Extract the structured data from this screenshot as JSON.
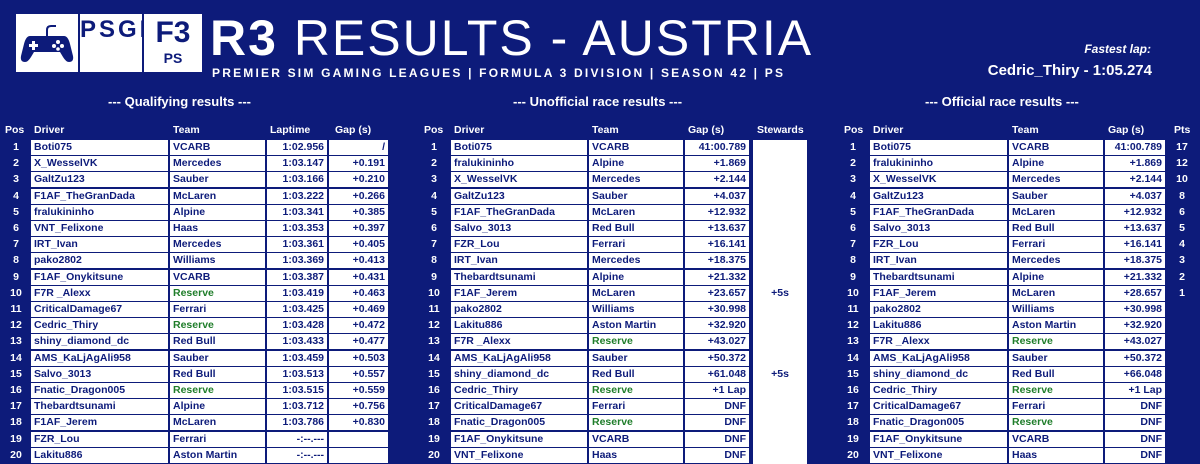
{
  "header": {
    "logo_psgl": "PSGL",
    "logo_f3_top": "F3",
    "logo_f3_bottom": "PS",
    "title_round": "R3",
    "title_rest": "RESULTS - AUSTRIA",
    "subtitle": "PREMIER SIM GAMING LEAGUES | FORMULA 3 DIVISION | SEASON 42 | PS",
    "fastest_label": "Fastest lap:",
    "fastest_value": "Cedric_Thiry - 1:05.274"
  },
  "colors": {
    "background": "#0d1b7a",
    "cell": "#ffffff",
    "reserve": "#1f7d2a"
  },
  "qualifying": {
    "title": "--- Qualifying results ---",
    "headers": [
      "Pos",
      "Driver",
      "Team",
      "Laptime",
      "Gap (s)"
    ],
    "rows": [
      [
        "1",
        "Boti075",
        "VCARB",
        "1:02.956",
        "/"
      ],
      [
        "2",
        "X_WesselVK",
        "Mercedes",
        "1:03.147",
        "+0.191"
      ],
      [
        "3",
        "GaltZu123",
        "Sauber",
        "1:03.166",
        "+0.210"
      ],
      [
        "4",
        "F1AF_TheGranDada",
        "McLaren",
        "1:03.222",
        "+0.266"
      ],
      [
        "5",
        "fralukininho",
        "Alpine",
        "1:03.341",
        "+0.385"
      ],
      [
        "6",
        "VNT_Felixone",
        "Haas",
        "1:03.353",
        "+0.397"
      ],
      [
        "7",
        "IRT_Ivan",
        "Mercedes",
        "1:03.361",
        "+0.405"
      ],
      [
        "8",
        "pako2802",
        "Williams",
        "1:03.369",
        "+0.413"
      ],
      [
        "9",
        "F1AF_Onykitsune",
        "VCARB",
        "1:03.387",
        "+0.431"
      ],
      [
        "10",
        "F7R _Alexx",
        "Reserve",
        "1:03.419",
        "+0.463"
      ],
      [
        "11",
        "CriticalDamage67",
        "Ferrari",
        "1:03.425",
        "+0.469"
      ],
      [
        "12",
        "Cedric_Thiry",
        "Reserve",
        "1:03.428",
        "+0.472"
      ],
      [
        "13",
        "shiny_diamond_dc",
        "Red Bull",
        "1:03.433",
        "+0.477"
      ],
      [
        "14",
        "AMS_KaLjAgAli958",
        "Sauber",
        "1:03.459",
        "+0.503"
      ],
      [
        "15",
        "Salvo_3013",
        "Red Bull",
        "1:03.513",
        "+0.557"
      ],
      [
        "16",
        "Fnatic_Dragon005",
        "Reserve",
        "1:03.515",
        "+0.559"
      ],
      [
        "17",
        "Thebardtsunami",
        "Alpine",
        "1:03.712",
        "+0.756"
      ],
      [
        "18",
        "F1AF_Jerem",
        "McLaren",
        "1:03.786",
        "+0.830"
      ],
      [
        "19",
        "FZR_Lou",
        "Ferrari",
        "-:--.---",
        ""
      ],
      [
        "20",
        "Lakitu886",
        "Aston Martin",
        "-:--.---",
        ""
      ]
    ]
  },
  "unofficial": {
    "title": "--- Unofficial race results ---",
    "headers": [
      "Pos",
      "Driver",
      "Team",
      "Gap (s)",
      "Stewards"
    ],
    "rows": [
      [
        "1",
        "Boti075",
        "VCARB",
        "41:00.789",
        ""
      ],
      [
        "2",
        "fralukininho",
        "Alpine",
        "+1.869",
        ""
      ],
      [
        "3",
        "X_WesselVK",
        "Mercedes",
        "+2.144",
        ""
      ],
      [
        "4",
        "GaltZu123",
        "Sauber",
        "+4.037",
        ""
      ],
      [
        "5",
        "F1AF_TheGranDada",
        "McLaren",
        "+12.932",
        ""
      ],
      [
        "6",
        "Salvo_3013",
        "Red Bull",
        "+13.637",
        ""
      ],
      [
        "7",
        "FZR_Lou",
        "Ferrari",
        "+16.141",
        ""
      ],
      [
        "8",
        "IRT_Ivan",
        "Mercedes",
        "+18.375",
        ""
      ],
      [
        "9",
        "Thebardtsunami",
        "Alpine",
        "+21.332",
        ""
      ],
      [
        "10",
        "F1AF_Jerem",
        "McLaren",
        "+23.657",
        "+5s"
      ],
      [
        "11",
        "pako2802",
        "Williams",
        "+30.998",
        ""
      ],
      [
        "12",
        "Lakitu886",
        "Aston Martin",
        "+32.920",
        ""
      ],
      [
        "13",
        "F7R _Alexx",
        "Reserve",
        "+43.027",
        ""
      ],
      [
        "14",
        "AMS_KaLjAgAli958",
        "Sauber",
        "+50.372",
        ""
      ],
      [
        "15",
        "shiny_diamond_dc",
        "Red Bull",
        "+61.048",
        "+5s"
      ],
      [
        "16",
        "Cedric_Thiry",
        "Reserve",
        "+1 Lap",
        ""
      ],
      [
        "17",
        "CriticalDamage67",
        "Ferrari",
        "DNF",
        ""
      ],
      [
        "18",
        "Fnatic_Dragon005",
        "Reserve",
        "DNF",
        ""
      ],
      [
        "19",
        "F1AF_Onykitsune",
        "VCARB",
        "DNF",
        ""
      ],
      [
        "20",
        "VNT_Felixone",
        "Haas",
        "DNF",
        ""
      ]
    ]
  },
  "official": {
    "title": "--- Official race results ---",
    "headers": [
      "Pos",
      "Driver",
      "Team",
      "Gap (s)",
      "Pts"
    ],
    "rows": [
      [
        "1",
        "Boti075",
        "VCARB",
        "41:00.789",
        "17"
      ],
      [
        "2",
        "fralukininho",
        "Alpine",
        "+1.869",
        "12"
      ],
      [
        "3",
        "X_WesselVK",
        "Mercedes",
        "+2.144",
        "10"
      ],
      [
        "4",
        "GaltZu123",
        "Sauber",
        "+4.037",
        "8"
      ],
      [
        "5",
        "F1AF_TheGranDada",
        "McLaren",
        "+12.932",
        "6"
      ],
      [
        "6",
        "Salvo_3013",
        "Red Bull",
        "+13.637",
        "5"
      ],
      [
        "7",
        "FZR_Lou",
        "Ferrari",
        "+16.141",
        "4"
      ],
      [
        "8",
        "IRT_Ivan",
        "Mercedes",
        "+18.375",
        "3"
      ],
      [
        "9",
        "Thebardtsunami",
        "Alpine",
        "+21.332",
        "2"
      ],
      [
        "10",
        "F1AF_Jerem",
        "McLaren",
        "+28.657",
        "1"
      ],
      [
        "11",
        "pako2802",
        "Williams",
        "+30.998",
        ""
      ],
      [
        "12",
        "Lakitu886",
        "Aston Martin",
        "+32.920",
        ""
      ],
      [
        "13",
        "F7R _Alexx",
        "Reserve",
        "+43.027",
        ""
      ],
      [
        "14",
        "AMS_KaLjAgAli958",
        "Sauber",
        "+50.372",
        ""
      ],
      [
        "15",
        "shiny_diamond_dc",
        "Red Bull",
        "+66.048",
        ""
      ],
      [
        "16",
        "Cedric_Thiry",
        "Reserve",
        "+1 Lap",
        ""
      ],
      [
        "17",
        "CriticalDamage67",
        "Ferrari",
        "DNF",
        ""
      ],
      [
        "18",
        "Fnatic_Dragon005",
        "Reserve",
        "DNF",
        ""
      ],
      [
        "19",
        "F1AF_Onykitsune",
        "VCARB",
        "DNF",
        ""
      ],
      [
        "20",
        "VNT_Felixone",
        "Haas",
        "DNF",
        ""
      ]
    ]
  }
}
